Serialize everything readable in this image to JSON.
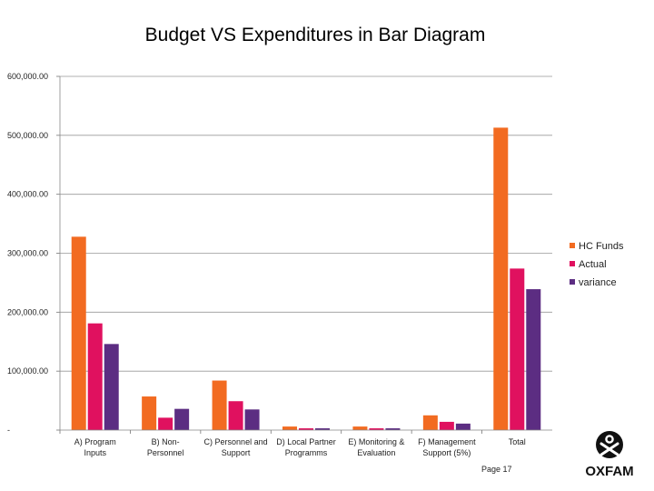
{
  "chart_data": {
    "type": "bar",
    "title": "Budget VS Expenditures in Bar Diagram",
    "xlabel": "",
    "ylabel": "",
    "ylim": [
      0,
      600000
    ],
    "grid": true,
    "legend_position": "right",
    "y_ticks": [
      {
        "value": 0,
        "label": "-"
      },
      {
        "value": 100000,
        "label": "100,000.00"
      },
      {
        "value": 200000,
        "label": "200,000.00"
      },
      {
        "value": 300000,
        "label": "300,000.00"
      },
      {
        "value": 400000,
        "label": "400,000.00"
      },
      {
        "value": 500000,
        "label": "500,000.00"
      },
      {
        "value": 600000,
        "label": "600,000.00"
      }
    ],
    "categories": [
      [
        "A) Program",
        "Inputs"
      ],
      [
        "B) Non-",
        "Personnel"
      ],
      [
        "C) Personnel and",
        "Support"
      ],
      [
        "D) Local Partner",
        "Programms"
      ],
      [
        "E) Monitoring &",
        "Evaluation"
      ],
      [
        "F) Management",
        "Support (5%)"
      ],
      [
        "Total"
      ]
    ],
    "series": [
      {
        "name": "HC Funds",
        "color": "#f26b21",
        "values": [
          328000,
          57000,
          84000,
          6000,
          6000,
          25000,
          513000
        ]
      },
      {
        "name": "Actual",
        "color": "#e0115f",
        "values": [
          181000,
          21000,
          49000,
          3000,
          3000,
          14000,
          274000
        ]
      },
      {
        "name": "variance",
        "color": "#5c2d82",
        "values": [
          146000,
          36000,
          35000,
          3000,
          3000,
          11000,
          239000
        ]
      }
    ]
  },
  "footer": {
    "page_label": "Page 17",
    "brand": "OXFAM"
  }
}
